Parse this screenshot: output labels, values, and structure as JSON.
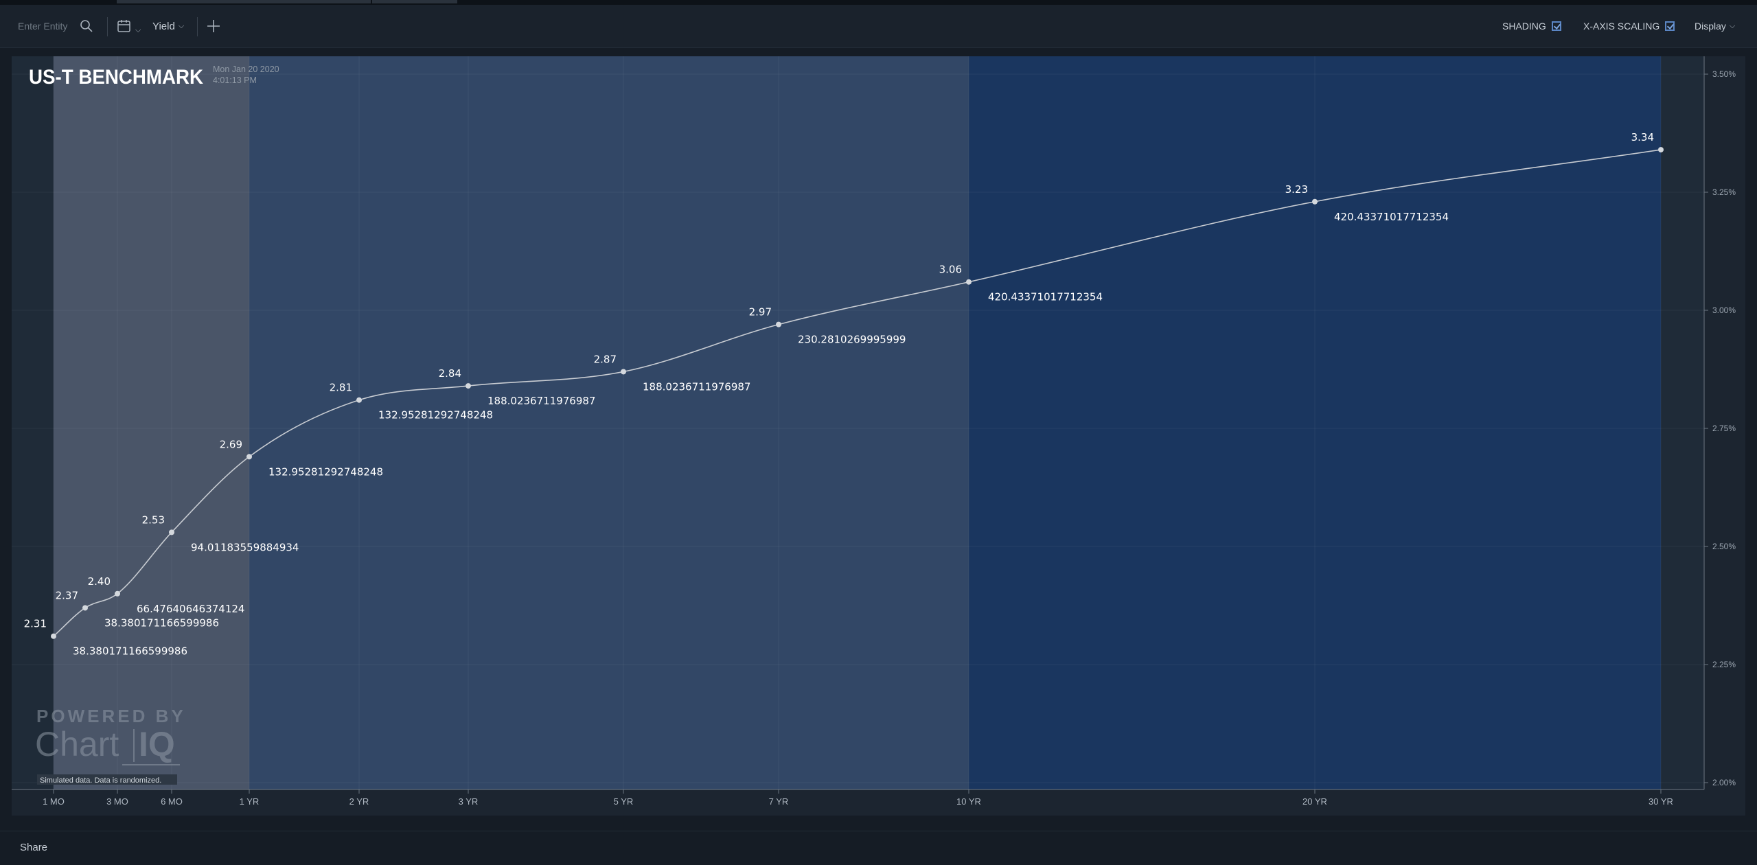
{
  "toolbar": {
    "entity_placeholder": "Enter Entity",
    "yield_label": "Yield",
    "shading_label": "SHADING",
    "x_axis_scaling_label": "X-AXIS SCALING",
    "display_label": "Display"
  },
  "chart": {
    "title": "US-T BENCHMARK",
    "date": "Mon Jan 20 2020",
    "time": "4:01:13 PM",
    "watermark_top": "POWERED BY",
    "watermark_brand_left": "Chart",
    "watermark_brand_right": "IQ",
    "disclaimer": "Simulated data. Data is randomized."
  },
  "colors": {
    "background": "#151c25",
    "plot_bg": "#1f2b38",
    "shade_1": "#4a5568",
    "shade_2": "#324766",
    "shade_3": "#1a365f",
    "curve": "#c8ccd2"
  },
  "footer": {
    "share_label": "Share"
  },
  "chart_data": {
    "type": "line",
    "xlabel": "",
    "ylabel": "",
    "ylim": [
      2.0,
      3.5
    ],
    "y_ticks": [
      "2.00%",
      "2.25%",
      "2.50%",
      "2.75%",
      "3.00%",
      "3.25%",
      "3.50%"
    ],
    "x_ticks": [
      "1 MO",
      "3 MO",
      "6 MO",
      "1 YR",
      "2 YR",
      "3 YR",
      "5 YR",
      "7 YR",
      "10 YR",
      "20 YR",
      "30 YR"
    ],
    "shading_bands": [
      {
        "from": "1 MO",
        "to": "1 YR"
      },
      {
        "from": "1 YR",
        "to": "10 YR"
      },
      {
        "from": "10 YR",
        "to": "30 YR"
      }
    ],
    "series": [
      {
        "points": [
          {
            "maturity_months": 1,
            "yield": 2.31,
            "yield_label": "2.31",
            "extra_label": "38.380171166599986"
          },
          {
            "maturity_months": 2,
            "yield": 2.37,
            "yield_label": "2.37",
            "extra_label": "38.380171166599986"
          },
          {
            "maturity_months": 3,
            "yield": 2.4,
            "yield_label": "2.40",
            "extra_label": "66.47640646374124"
          },
          {
            "maturity_months": 6,
            "yield": 2.53,
            "yield_label": "2.53",
            "extra_label": "94.01183559884934"
          },
          {
            "maturity_months": 12,
            "yield": 2.69,
            "yield_label": "2.69",
            "extra_label": "132.95281292748248"
          },
          {
            "maturity_months": 24,
            "yield": 2.81,
            "yield_label": "2.81",
            "extra_label": "132.95281292748248"
          },
          {
            "maturity_months": 36,
            "yield": 2.84,
            "yield_label": "2.84",
            "extra_label": "188.0236711976987"
          },
          {
            "maturity_months": 60,
            "yield": 2.87,
            "yield_label": "2.87",
            "extra_label": "188.0236711976987"
          },
          {
            "maturity_months": 84,
            "yield": 2.97,
            "yield_label": "2.97",
            "extra_label": "230.2810269995999"
          },
          {
            "maturity_months": 120,
            "yield": 3.06,
            "yield_label": "3.06",
            "extra_label": "420.43371017712354"
          },
          {
            "maturity_months": 240,
            "yield": 3.23,
            "yield_label": "3.23",
            "extra_label": "420.43371017712354"
          },
          {
            "maturity_months": 360,
            "yield": 3.34,
            "yield_label": "3.34",
            "extra_label": ""
          }
        ]
      }
    ]
  }
}
